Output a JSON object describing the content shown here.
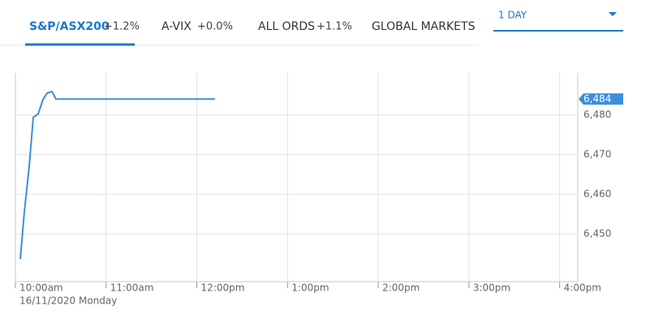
{
  "tabs": [
    {
      "name": "S&P/ASX200",
      "change": "+1.2%"
    },
    {
      "name": "A-VIX",
      "change": "+0.0%"
    },
    {
      "name": "ALL ORDS",
      "change": "+1.1%"
    },
    {
      "name": "GLOBAL MARKETS"
    }
  ],
  "range_selector": "1 DAY",
  "chart_data": {
    "type": "line",
    "date_label": "16/11/2020 Monday",
    "series": [
      {
        "color": "#3a8fd9",
        "x": [
          10.054,
          10.098,
          10.152,
          10.197,
          10.25,
          10.304,
          10.349,
          10.403,
          10.447,
          12.2
        ],
        "values": [
          6443.7,
          6455.5,
          6467.1,
          6479.4,
          6480.2,
          6483.9,
          6485.5,
          6485.9,
          6484,
          6484
        ]
      }
    ],
    "last_value": {
      "value": 6484,
      "label": "6,484"
    },
    "xlim": [
      10,
      16.2
    ],
    "xticks": [
      {
        "value": 10,
        "label": "10:00am"
      },
      {
        "value": 11,
        "label": "11:00am"
      },
      {
        "value": 12,
        "label": "12:00pm"
      },
      {
        "value": 13,
        "label": "1:00pm"
      },
      {
        "value": 14,
        "label": "2:00pm"
      },
      {
        "value": 15,
        "label": "3:00pm"
      },
      {
        "value": 16,
        "label": "4:00pm"
      }
    ],
    "ylim": [
      6438,
      6490.6
    ],
    "yticks": [
      {
        "value": 6450,
        "label": "6,450"
      },
      {
        "value": 6460,
        "label": "6,460"
      },
      {
        "value": 6470,
        "label": "6,470"
      },
      {
        "value": 6480,
        "label": "6,480"
      }
    ],
    "grid": true
  }
}
